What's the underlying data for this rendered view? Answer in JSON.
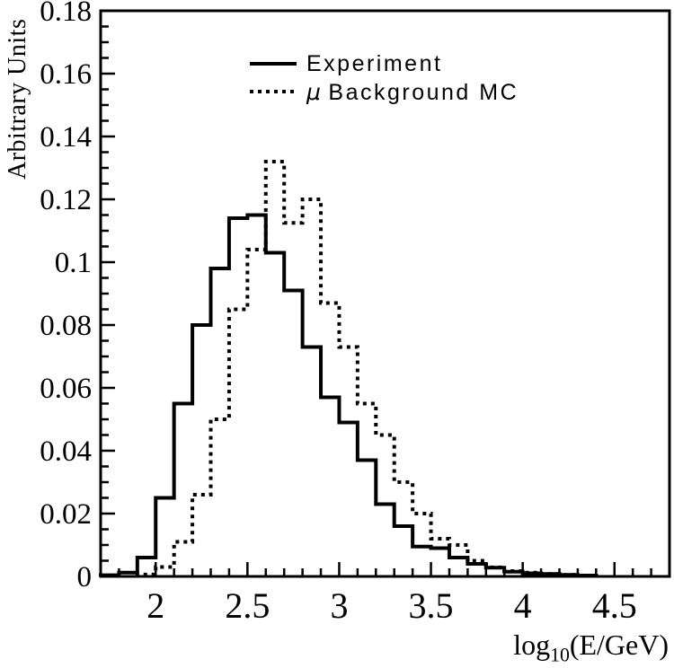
{
  "figure": {
    "background_color": "#ffffff",
    "ink_color": "#000000"
  },
  "axis": {
    "y_title": "Arbitrary Units",
    "x_title_log": "log",
    "x_title_sub": "10",
    "x_title_rest": "(E/GeV)"
  },
  "legend": {
    "experiment_label": "Experiment",
    "mc_symbol": "μ",
    "mc_label_rest": "Background MC"
  },
  "chart_data": {
    "type": "line",
    "style": "step-histogram",
    "title": "",
    "xlabel": "log10(E/GeV)",
    "ylabel": "Arbitrary Units",
    "xlim": [
      1.7,
      4.8
    ],
    "ylim": [
      0,
      0.18
    ],
    "grid": false,
    "legend_position": "top-center",
    "bin_start": 1.7,
    "bin_width": 0.1,
    "x_major_ticks": [
      2,
      2.5,
      3,
      3.5,
      4,
      4.5
    ],
    "x_tick_labels": [
      "2",
      "2.5",
      "3",
      "3.5",
      "4",
      "4.5"
    ],
    "x_minor_step": 0.1,
    "y_major_ticks": [
      0,
      0.02,
      0.04,
      0.06,
      0.08,
      0.1,
      0.12,
      0.14,
      0.16,
      0.18
    ],
    "y_tick_labels": [
      "0",
      "0.02",
      "0.04",
      "0.06",
      "0.08",
      "0.1",
      "0.12",
      "0.14",
      "0.16",
      "0.18"
    ],
    "y_minor_step": 0.005,
    "series": [
      {
        "name": "Experiment",
        "line": "solid",
        "color": "#000000",
        "values": [
          0.0004,
          0.0012,
          0.006,
          0.025,
          0.055,
          0.08,
          0.098,
          0.114,
          0.115,
          0.103,
          0.091,
          0.073,
          0.057,
          0.049,
          0.037,
          0.023,
          0.016,
          0.0095,
          0.009,
          0.006,
          0.004,
          0.0028,
          0.0015,
          0.001,
          0.0008,
          0.0005,
          0.0003,
          0
        ]
      },
      {
        "name": "μ Background MC",
        "line": "dotted",
        "color": "#000000",
        "values": [
          0,
          0,
          0.0006,
          0.003,
          0.011,
          0.026,
          0.05,
          0.085,
          0.104,
          0.132,
          0.1125,
          0.12,
          0.087,
          0.073,
          0.055,
          0.045,
          0.03,
          0.02,
          0.012,
          0.01,
          0.005,
          0.0029,
          0.0017,
          0.0012,
          0.0008,
          0.0005,
          0.0002,
          0
        ]
      }
    ]
  }
}
